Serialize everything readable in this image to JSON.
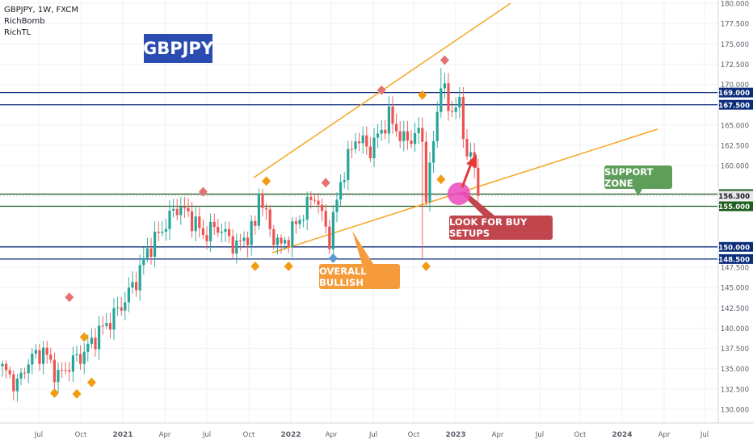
{
  "legend": {
    "symbol_line": "GBPJPY, 1W, FXCM",
    "indicator_1": "RichBomb",
    "indicator_2": "RichTL"
  },
  "title_badge": "GBPJPY",
  "annotations": {
    "support_zone": "SUPPORT ZONE",
    "buy_setups": "LOOK FOR BUY SETUPS",
    "overall_bullish": "OVERALL BULLISH"
  },
  "price_axis": {
    "ticks": [
      "180.000",
      "177.500",
      "175.000",
      "172.500",
      "170.000",
      "165.000",
      "162.500",
      "160.000",
      "147.500",
      "145.000",
      "142.500",
      "140.000",
      "137.500",
      "135.000",
      "132.500",
      "130.000"
    ],
    "tick_values": [
      180,
      177.5,
      175,
      172.5,
      170,
      165,
      162.5,
      160,
      147.5,
      145,
      142.5,
      140,
      137.5,
      135,
      132.5,
      130
    ],
    "levels": [
      {
        "label": "169.000",
        "value": 169.0,
        "color": "#0c2d7a"
      },
      {
        "label": "167.500",
        "value": 167.5,
        "color": "#0c2d7a"
      },
      {
        "label": "156.500",
        "value": 156.5,
        "color": "#1e5e1e"
      },
      {
        "label": "156.300",
        "value": 156.3,
        "color": "#e8e8e8"
      },
      {
        "label": "155.000",
        "value": 155.0,
        "color": "#1e5e1e"
      },
      {
        "label": "150.000",
        "value": 150.0,
        "color": "#0c2d7a"
      },
      {
        "label": "148.500",
        "value": 148.5,
        "color": "#0c2d7a"
      }
    ]
  },
  "time_axis": {
    "labels": [
      "Jul",
      "Oct",
      "2021",
      "Apr",
      "Jul",
      "Oct",
      "2022",
      "Apr",
      "Jul",
      "Oct",
      "2023",
      "Apr",
      "Jul",
      "Oct",
      "2024",
      "Apr",
      "Jul"
    ]
  },
  "colors": {
    "up": "#26a69a",
    "down": "#ef5350",
    "trendline": "#f5a623",
    "support_fill": "#5e9e5a",
    "buy_fill": "#c1454d",
    "bullish_fill": "#f59b3b",
    "title_fill": "#2a4cb0"
  },
  "markers": {
    "bottom_orange": [
      [
        20,
        132.9
      ],
      [
        24,
        134.3
      ],
      [
        68,
        148.6
      ],
      [
        77,
        148.6
      ],
      [
        114,
        148.6
      ],
      [
        118,
        159.3
      ]
    ],
    "top_orange": [
      [
        22,
        137.9
      ],
      [
        71,
        157.1
      ],
      [
        113,
        167.7
      ],
      [
        14,
        131.0
      ]
    ],
    "top_red": [
      [
        18,
        142.8
      ],
      [
        54,
        155.8
      ],
      [
        87,
        156.9
      ],
      [
        102,
        168.3
      ],
      [
        119,
        172.0
      ]
    ],
    "blue": [
      [
        89,
        149.6
      ]
    ]
  }
}
